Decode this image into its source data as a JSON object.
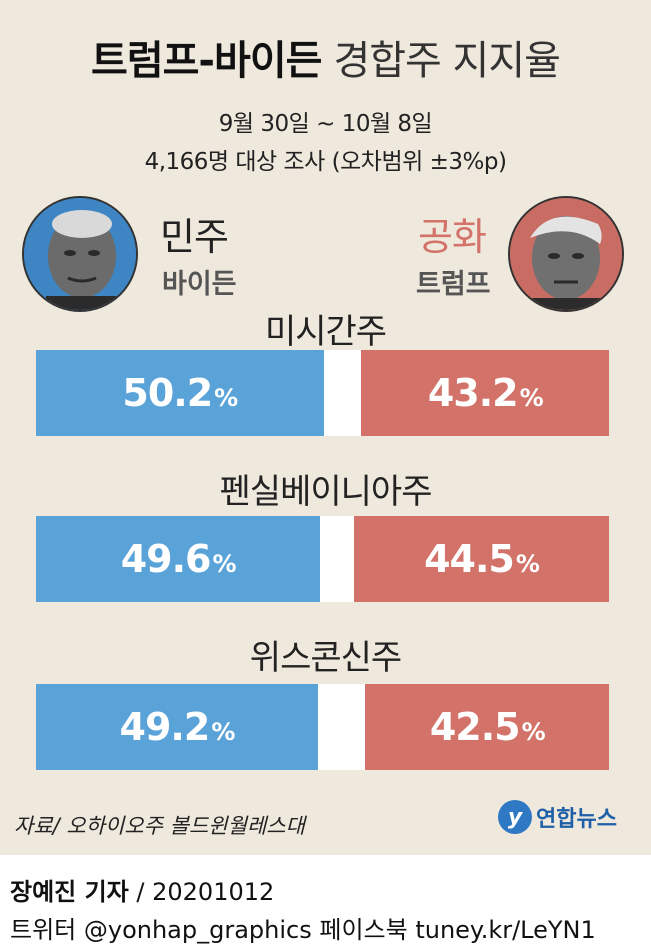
{
  "header": {
    "title_bold": "트럼프-바이든",
    "title_light": "경합주 지지율",
    "period": "9월 30일 ~ 10월 8일",
    "survey": "4,166명 대상 조사 (오차범위 ±3%p)"
  },
  "candidates": {
    "dem": {
      "party": "민주",
      "name": "바이든",
      "color": "#5aa3d8"
    },
    "rep": {
      "party": "공화",
      "name": "트럼프",
      "color": "#d27268"
    }
  },
  "percent_sign": "%",
  "chart_data": {
    "type": "bar",
    "orientation": "horizontal-split",
    "categories": [
      "미시간주",
      "펜실베이니아주",
      "위스콘신주"
    ],
    "series": [
      {
        "name": "바이든",
        "values": [
          50.2,
          49.6,
          49.2
        ],
        "color": "#5aa3d8"
      },
      {
        "name": "트럼프",
        "values": [
          43.2,
          44.5,
          42.5
        ],
        "color": "#d27268"
      }
    ],
    "unit": "%"
  },
  "source": "자료/ 오하이오주 볼드윈월레스대",
  "logo": {
    "mark": "y",
    "text": "연합뉴스"
  },
  "footer": {
    "reporter": "장예진 기자",
    "date": "/ 20201012",
    "twitter": "트위터 @yonhap_graphics  페이스북 tuney.kr/LeYN1"
  }
}
